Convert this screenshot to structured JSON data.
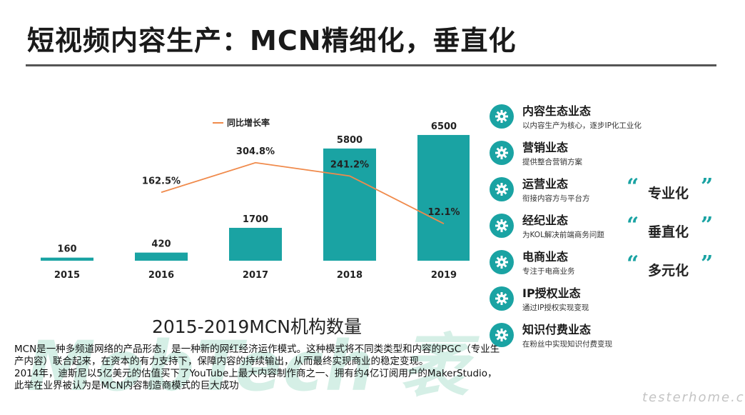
{
  "title": "短视频内容生产：MCN精细化，垂直化",
  "chart_data": {
    "type": "bar",
    "categories": [
      "2015",
      "2016",
      "2017",
      "2018",
      "2019"
    ],
    "values": [
      160,
      420,
      1700,
      5800,
      6500
    ],
    "value_labels": [
      "160",
      "420",
      "1700",
      "5800",
      "6500"
    ],
    "ylim": [
      0,
      7200
    ],
    "bar_color": "#1aa3a3",
    "line_series": {
      "name": "同比增长率",
      "categories": [
        "2016",
        "2017",
        "2018",
        "2019"
      ],
      "values": [
        162.5,
        304.8,
        241.2,
        12.1
      ],
      "labels": [
        "162.5%",
        "304.8%",
        "241.2%",
        "12.1%"
      ],
      "color": "#f08a4b"
    },
    "legend_position": "top-left",
    "caption": "2015-2019MCN机构数量"
  },
  "watermark": "MobTech 袤",
  "description": [
    "MCN是一种多频道网络的产品形态，是一种新的网红经济运作模式。这种模式将不同类类型和内容的PGC（专业生产内容）联合起来，在资本的有力支持下，保障内容的持续输出，从而最终实现商业的稳定变现。",
    "2014年，迪斯尼以5亿美元的估值买下了YouTube上最大内容制作商之一、拥有约4亿订阅用户的MakerStudio，此举在业界被认为是MCN内容制造商模式的巨大成功"
  ],
  "formats": [
    {
      "name": "内容生态业态",
      "desc": "以内容生产为核心，逐步IP化工业化",
      "icon": "gear-icon"
    },
    {
      "name": "营销业态",
      "desc": "提供整合营销方案",
      "icon": "gear-icon"
    },
    {
      "name": "运营业态",
      "desc": "衔接内容方与平台方",
      "icon": "gear-icon"
    },
    {
      "name": "经纪业态",
      "desc": "为KOL解决前端商务问题",
      "icon": "gear-icon"
    },
    {
      "name": "电商业态",
      "desc": "专注于电商业务",
      "icon": "gear-icon"
    },
    {
      "name": "IP授权业态",
      "desc": "通过IP授权实现变现",
      "icon": "gear-icon"
    },
    {
      "name": "知识付费业态",
      "desc": "在粉丝中实现知识付费变现",
      "icon": "gear-icon"
    }
  ],
  "tags": [
    "专业化",
    "垂直化",
    "多元化"
  ],
  "quote_open": "“",
  "quote_close": "”",
  "brand": "testerhome.com",
  "accent_color": "#1aa3a3"
}
